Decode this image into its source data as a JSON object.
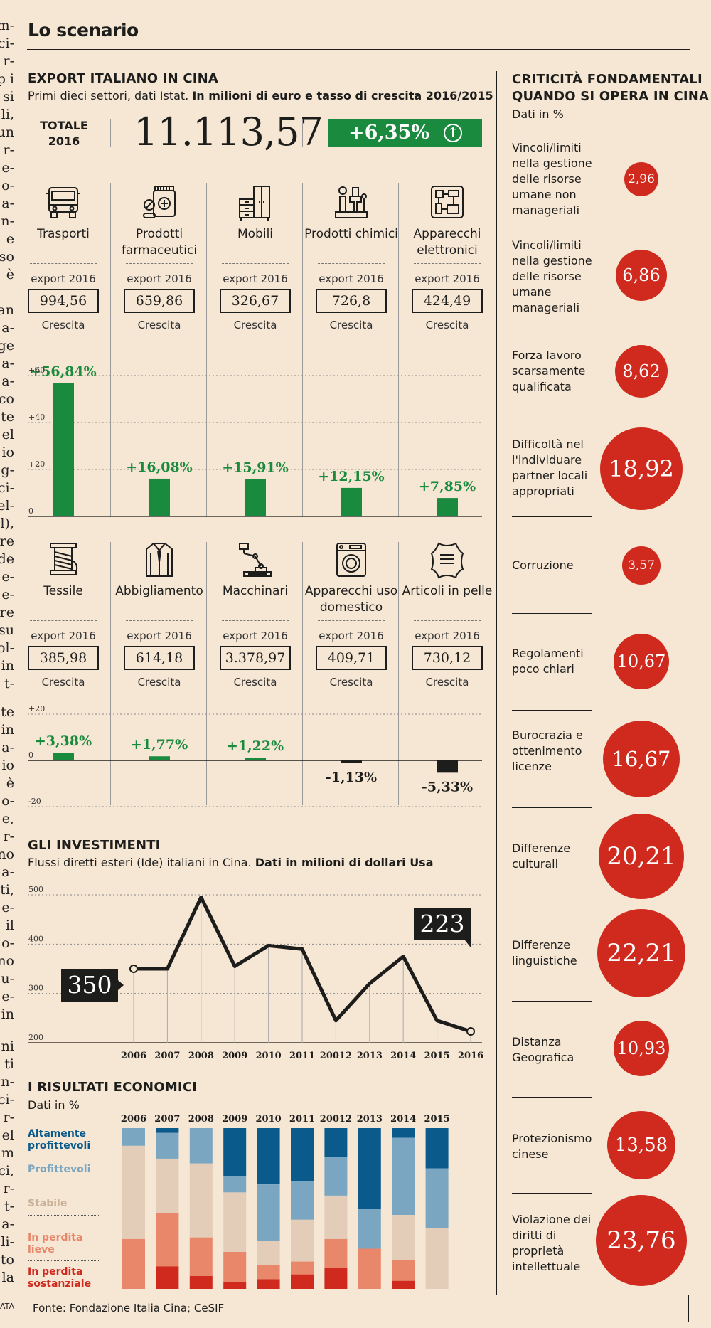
{
  "side_column_fragments": [
    "m-",
    "ci-",
    "r-",
    "p i",
    "si",
    "li,",
    "un",
    "r-",
    "e-",
    "o-",
    "a-",
    "n-",
    "e",
    "so",
    "è",
    "an",
    "a-",
    "ge",
    "a-",
    "a-",
    "co",
    "te",
    "el",
    "io",
    "g-",
    "ci-",
    "el-",
    "l),",
    "re",
    "de",
    "e-",
    "e-",
    "re",
    "su",
    "ol-",
    "in",
    "t-",
    "te",
    "in",
    "a-",
    "io",
    "è",
    "o-",
    "e,",
    "r-",
    "no",
    "a-",
    "ti,",
    "e-",
    "il",
    "o-",
    "no",
    "u-",
    "e-",
    "in",
    "ni",
    "ti",
    "n-",
    "ci-",
    "r-",
    "el",
    "m",
    "ci,",
    "r-",
    "t-",
    "a-",
    "li-",
    "to",
    "la",
    "ATA"
  ],
  "scenario_title": "Lo scenario",
  "export": {
    "title": "EXPORT ITALIANO IN CINA",
    "subtitle_plain": "Primi dieci settori, dati Istat. ",
    "subtitle_bold": "In milioni di euro e tasso di crescita 2016/2015",
    "total_label_1": "TOTALE",
    "total_label_2": "2016",
    "total_value": "11.113,57",
    "total_growth": "+6,35%",
    "export_label": "export 2016",
    "growth_label": "Crescita",
    "row1_axis": [
      "+60",
      "+40",
      "+20",
      "0"
    ],
    "row2_axis": [
      "+20",
      "0",
      "-20"
    ]
  },
  "investments": {
    "title": "GLI INVESTIMENTI",
    "subtitle_plain": "Flussi diretti esteri (Ide) italiani in Cina. ",
    "subtitle_bold": "Dati in milioni di dollari Usa",
    "start_callout": "350",
    "end_callout": "223",
    "y_ticks": [
      "500",
      "400",
      "300",
      "200"
    ]
  },
  "results": {
    "title": "I RISULTATI ECONOMICI",
    "subtitle": "Dati in %",
    "legend": [
      {
        "label_1": "Altamente",
        "label_2": "profittevoli",
        "color": "#0a5a8c"
      },
      {
        "label_1": "Profittevoli",
        "label_2": "",
        "color": "#7aa6c2"
      },
      {
        "label_1": "Stabile",
        "label_2": "",
        "color": "#e3cdb8"
      },
      {
        "label_1": "In perdita",
        "label_2": "lieve",
        "color": "#e9876a"
      },
      {
        "label_1": "In perdita",
        "label_2": "sostanziale",
        "color": "#cf2a1d"
      }
    ]
  },
  "criticita": {
    "title_1": "CRITICITÀ FONDAMENTALI",
    "title_2": "QUANDO SI OPERA IN CINA",
    "subtitle": "Dati in %",
    "items": [
      {
        "label": "Vincoli/limiti nella gestione delle risorse umane non manageriali",
        "value": "2,96"
      },
      {
        "label": "Vincoli/limiti nella gestione delle risorse umane manageriali",
        "value": "6,86"
      },
      {
        "label": "Forza lavoro scarsamente qualificata",
        "value": "8,62"
      },
      {
        "label": "Difficoltà nel l'individuare partner locali appropriati",
        "value": "18,92"
      },
      {
        "label": "Corruzione",
        "value": "3,57"
      },
      {
        "label": "Regolamenti poco chiari",
        "value": "10,67"
      },
      {
        "label": "Burocrazia e ottenimento licenze",
        "value": "16,67"
      },
      {
        "label": "Differenze culturali",
        "value": "20,21"
      },
      {
        "label": "Differenze linguistiche",
        "value": "22,21"
      },
      {
        "label": "Distanza Geografica",
        "value": "10,93"
      },
      {
        "label": "Protezionismo cinese",
        "value": "13,58"
      },
      {
        "label": "Violazione dei diritti di proprietà intellettuale",
        "value": "23,76"
      }
    ]
  },
  "source": "Fonte: Fondazione Italia Cina; CeSIF",
  "chart_data": [
    {
      "type": "bar",
      "title": "EXPORT ITALIANO IN CINA",
      "subtitle": "Primi dieci settori, dati Istat. In milioni di euro e tasso di crescita 2016/2015",
      "categories": [
        "Trasporti",
        "Prodotti farmaceutici",
        "Mobili",
        "Prodotti chimici",
        "Apparecchi elettronici",
        "Tessile",
        "Abbigliamento",
        "Macchinari",
        "Apparecchi uso domestico",
        "Articoli in pelle"
      ],
      "export_2016": [
        "994,56",
        "659,86",
        "326,67",
        "726,8",
        "424,49",
        "385,98",
        "614,18",
        "3.378,97",
        "409,71",
        "730,12"
      ],
      "growth_labels": [
        "+56,84%",
        "+16,08%",
        "+15,91%",
        "+12,15%",
        "+7,85%",
        "+3,38%",
        "+1,77%",
        "+1,22%",
        "-1,13%",
        "-5,33%"
      ],
      "growth_values": [
        56.84,
        16.08,
        15.91,
        12.15,
        7.85,
        3.38,
        1.77,
        1.22,
        -1.13,
        -5.33
      ],
      "ylim_row1": [
        0,
        60
      ],
      "ylim_row2": [
        -20,
        20
      ],
      "colors": {
        "positive": "#1a8b3e",
        "negative": "#1d1d1b"
      }
    },
    {
      "type": "line",
      "title": "GLI INVESTIMENTI",
      "subtitle": "Flussi diretti esteri (Ide) italiani in Cina. Dati in milioni di dollari Usa",
      "x": [
        "2006",
        "2007",
        "2008",
        "2009",
        "2010",
        "2011",
        "20012",
        "2013",
        "2014",
        "2015",
        "2016"
      ],
      "values": [
        350,
        350,
        495,
        355,
        397,
        390,
        245,
        320,
        375,
        245,
        223
      ],
      "ylim": [
        200,
        500
      ],
      "yticks": [
        200,
        300,
        400,
        500
      ]
    },
    {
      "type": "bar",
      "stacked": true,
      "title": "I RISULTATI ECONOMICI",
      "subtitle": "Dati in %",
      "categories": [
        "2006",
        "2007",
        "2008",
        "2009",
        "2010",
        "2011",
        "20012",
        "2013",
        "2014",
        "2015"
      ],
      "series": [
        {
          "name": "Altamente profittevoli",
          "values": [
            0,
            3,
            0,
            30,
            35,
            33,
            18,
            50,
            6,
            25
          ]
        },
        {
          "name": "Profittevoli",
          "values": [
            11,
            16,
            22,
            10,
            35,
            24,
            24,
            25,
            48,
            37
          ]
        },
        {
          "name": "Stabile",
          "values": [
            58,
            34,
            46,
            37,
            15,
            26,
            27,
            0,
            28,
            38
          ]
        },
        {
          "name": "In perdita lieve",
          "values": [
            31,
            33,
            24,
            19,
            9,
            8,
            18,
            25,
            13,
            0
          ]
        },
        {
          "name": "In perdita sostanziale",
          "values": [
            0,
            14,
            8,
            4,
            6,
            9,
            13,
            0,
            5,
            0
          ]
        }
      ],
      "colors": [
        "#0a5a8c",
        "#7aa6c2",
        "#e3cdb8",
        "#e9876a",
        "#cf2a1d"
      ]
    }
  ]
}
